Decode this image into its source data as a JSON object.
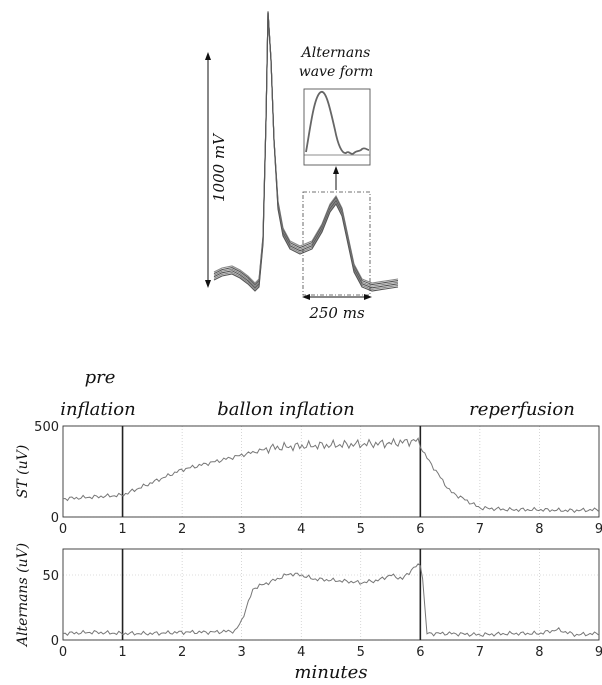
{
  "waveform": {
    "amplitude_label": "1000 mV",
    "duration_label": "250 ms",
    "inset_title_line1": "Alternans",
    "inset_title_line2": "wave form"
  },
  "phases": {
    "pre_line1": "pre",
    "pre_line2": "inflation",
    "inflation": "ballon inflation",
    "reperfusion": "reperfusion"
  },
  "chart_data": [
    {
      "type": "line",
      "ylabel": "ST (uV)",
      "xlim": [
        0,
        9
      ],
      "ylim": [
        0,
        500
      ],
      "x_ticks": [
        "0",
        "1",
        "2",
        "3",
        "4",
        "5",
        "6",
        "7",
        "8",
        "9"
      ],
      "y_ticks": [
        "0",
        "500"
      ],
      "grid": true,
      "event_markers": [
        1,
        6
      ],
      "series": [
        {
          "color": "#777777",
          "x": [
            0,
            0.5,
            1,
            1.5,
            2,
            2.5,
            3,
            3.5,
            4,
            4.5,
            5,
            5.5,
            5.95,
            6.1,
            6.5,
            7,
            7.5,
            8,
            8.5,
            9
          ],
          "y": [
            100,
            110,
            120,
            190,
            260,
            300,
            340,
            380,
            390,
            395,
            400,
            405,
            420,
            330,
            140,
            50,
            40,
            40,
            35,
            40
          ]
        }
      ]
    },
    {
      "type": "line",
      "ylabel": "Alternans (uV)",
      "xlabel": "minutes",
      "xlim": [
        0,
        9
      ],
      "ylim": [
        0,
        70
      ],
      "x_ticks": [
        "0",
        "1",
        "2",
        "3",
        "4",
        "5",
        "6",
        "7",
        "8",
        "9"
      ],
      "y_ticks": [
        "0",
        "50"
      ],
      "grid": true,
      "event_markers": [
        1,
        6
      ],
      "series": [
        {
          "color": "#777777",
          "x": [
            0,
            0.5,
            1,
            1.5,
            2,
            2.5,
            2.9,
            3.0,
            3.2,
            3.5,
            3.8,
            4.0,
            4.2,
            4.5,
            4.8,
            5.0,
            5.3,
            5.5,
            5.7,
            5.9,
            6.0,
            6.05,
            6.1,
            6.5,
            7,
            7.5,
            8,
            8.3,
            8.6,
            9
          ],
          "y": [
            5,
            6,
            5,
            5,
            6,
            6,
            7,
            15,
            40,
            45,
            51,
            50,
            47,
            46,
            45,
            44,
            46,
            50,
            47,
            56,
            58,
            45,
            5,
            5,
            4,
            5,
            5,
            8,
            4,
            5
          ]
        }
      ]
    }
  ]
}
